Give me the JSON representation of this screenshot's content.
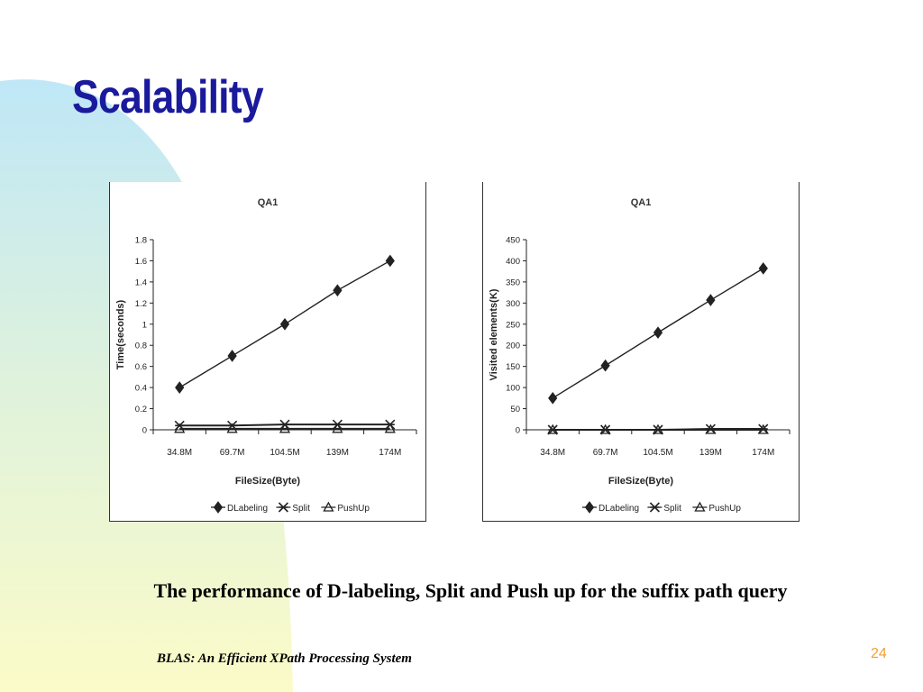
{
  "slide": {
    "title": "Scalability",
    "caption": "The performance of D-labeling, Split and Push up for the suffix path query",
    "footer": "BLAS: An Efficient XPath Processing System",
    "page_number": "24",
    "colors": {
      "title": "#1a1a9c",
      "page_number": "#f0a030",
      "bg_blue": "#bfe7f7",
      "bg_yellow": "#fbfbc8"
    }
  },
  "chart_data": [
    {
      "type": "line",
      "title": "QA1",
      "xlabel": "FileSize(Byte)",
      "ylabel": "Time(seconds)",
      "categories": [
        "34.8M",
        "69.7M",
        "104.5M",
        "139M",
        "174M"
      ],
      "ylim": [
        0,
        1.8
      ],
      "yticks": [
        0,
        0.2,
        0.4,
        0.6,
        0.8,
        1,
        1.2,
        1.4,
        1.6,
        1.8
      ],
      "ytick_labels": [
        "0",
        "0.2",
        "0.4",
        "0.6",
        "0.8",
        "1",
        "1.2",
        "1.4",
        "1.6",
        "1.8"
      ],
      "grid": false,
      "legend": "bottom",
      "series": [
        {
          "name": "DLabeling",
          "marker": "diamond",
          "values": [
            0.4,
            0.7,
            1.0,
            1.32,
            1.6
          ]
        },
        {
          "name": "Split",
          "marker": "x",
          "values": [
            0.04,
            0.04,
            0.05,
            0.05,
            0.05
          ]
        },
        {
          "name": "PushUp",
          "marker": "triangle",
          "values": [
            0.01,
            0.01,
            0.01,
            0.01,
            0.01
          ]
        }
      ]
    },
    {
      "type": "line",
      "title": "QA1",
      "xlabel": "FileSize(Byte)",
      "ylabel": "Visited elements(K)",
      "categories": [
        "34.8M",
        "69.7M",
        "104.5M",
        "139M",
        "174M"
      ],
      "ylim": [
        0,
        450
      ],
      "yticks": [
        0,
        50,
        100,
        150,
        200,
        250,
        300,
        350,
        400,
        450
      ],
      "ytick_labels": [
        "0",
        "50",
        "100",
        "150",
        "200",
        "250",
        "300",
        "350",
        "400",
        "450"
      ],
      "grid": false,
      "legend": "bottom",
      "series": [
        {
          "name": "DLabeling",
          "marker": "diamond",
          "values": [
            75,
            152,
            230,
            307,
            382
          ]
        },
        {
          "name": "Split",
          "marker": "x",
          "values": [
            0,
            0,
            0,
            2,
            2
          ]
        },
        {
          "name": "PushUp",
          "marker": "triangle",
          "values": [
            0,
            0,
            0,
            0,
            0
          ]
        }
      ]
    }
  ]
}
